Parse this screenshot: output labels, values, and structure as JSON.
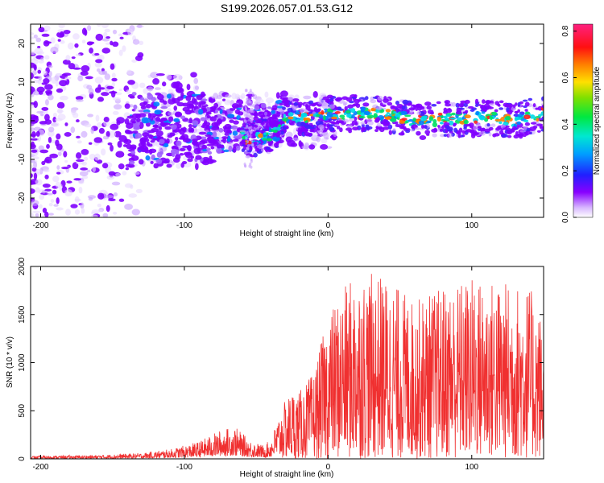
{
  "title": "S199.2026.057.01.53.G12",
  "chart_data": [
    {
      "type": "heatmap",
      "name": "spectrogram",
      "xlabel": "Height of straight line (km)",
      "ylabel": "Frequency (Hz)",
      "xlim": [
        -207,
        150
      ],
      "ylim": [
        -25,
        25
      ],
      "xticks": [
        -200,
        -100,
        0,
        100
      ],
      "xtick_labels": [
        "-200",
        "-100",
        "0",
        "100"
      ],
      "yticks": [
        -20,
        -10,
        0,
        10,
        20
      ],
      "ytick_labels": [
        "-20",
        "-10",
        "0",
        "10",
        "20"
      ],
      "colorbar": {
        "label": "Normalized spectral amplitude",
        "range": [
          0.0,
          0.83
        ],
        "ticks": [
          0.0,
          0.2,
          0.4,
          0.6,
          0.8
        ],
        "tick_labels": [
          "0.0",
          "0.2",
          "0.4",
          "0.6",
          "0.8"
        ]
      },
      "ridge": {
        "x": [
          -60,
          -55,
          -50,
          -45,
          -40,
          -35,
          -30,
          -20,
          -10,
          0,
          10,
          20,
          30,
          40,
          50,
          60,
          70,
          80,
          90,
          100,
          110,
          120,
          130,
          140,
          150
        ],
        "freq": [
          -4,
          -5,
          -4.5,
          -4,
          -4,
          -2,
          0.5,
          1,
          0.5,
          2,
          1.5,
          2,
          2,
          1.5,
          1,
          0,
          0,
          0.5,
          0.5,
          0.5,
          1,
          0.5,
          0,
          1,
          2
        ]
      },
      "background_noise": {
        "x_start": -207,
        "x_end": -35,
        "freq_spread": 25
      }
    },
    {
      "type": "line",
      "name": "snr",
      "xlabel": "Height of straight line (km)",
      "ylabel": "SNR (10 * v/v)",
      "xlim": [
        -207,
        150
      ],
      "ylim": [
        0,
        2000
      ],
      "xticks": [
        -200,
        -100,
        0,
        100
      ],
      "xtick_labels": [
        "-200",
        "-100",
        "0",
        "100"
      ],
      "yticks": [
        0,
        500,
        1000,
        1500,
        2000
      ],
      "ytick_labels": [
        "0",
        "500",
        "1000",
        "1500",
        "2000"
      ],
      "color": "#f03030",
      "envelope": {
        "x": [
          -207,
          -160,
          -130,
          -110,
          -90,
          -75,
          -65,
          -55,
          -45,
          -40,
          -35,
          -30,
          -25,
          -20,
          -10,
          0,
          10,
          20,
          40,
          60,
          80,
          100,
          120,
          140,
          150
        ],
        "max": [
          30,
          40,
          60,
          100,
          180,
          300,
          340,
          200,
          140,
          200,
          420,
          600,
          720,
          700,
          900,
          1500,
          1750,
          1950,
          1900,
          1650,
          1800,
          1900,
          1850,
          1800,
          1450
        ]
      }
    }
  ]
}
